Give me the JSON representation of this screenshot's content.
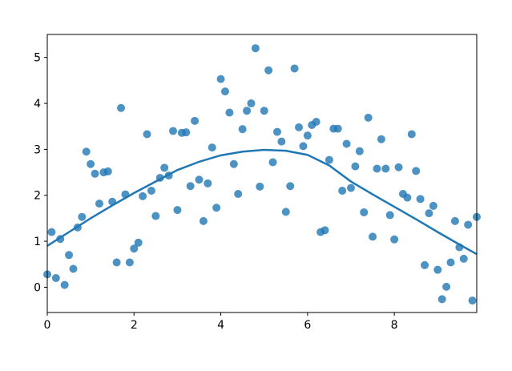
{
  "chart_data": {
    "type": "scatter",
    "xlim": [
      0,
      9.9
    ],
    "ylim": [
      -0.55,
      5.5
    ],
    "xticks": [
      0,
      2,
      4,
      6,
      8
    ],
    "yticks": [
      0,
      1,
      2,
      3,
      4,
      5
    ],
    "series": [
      {
        "type": "scatter",
        "color": "#1f77b4",
        "x": [
          0,
          0.1,
          0.2,
          0.3,
          0.4,
          0.5,
          0.6,
          0.7,
          0.8,
          0.9,
          1.0,
          1.1,
          1.2,
          1.3,
          1.4,
          1.5,
          1.6,
          1.7,
          1.8,
          1.9,
          2.0,
          2.1,
          2.2,
          2.3,
          2.4,
          2.5,
          2.6,
          2.7,
          2.8,
          2.9,
          3.0,
          3.1,
          3.2,
          3.3,
          3.4,
          3.5,
          3.6,
          3.7,
          3.8,
          3.9,
          4.0,
          4.1,
          4.2,
          4.3,
          4.4,
          4.5,
          4.6,
          4.7,
          4.8,
          4.9,
          5.0,
          5.1,
          5.2,
          5.3,
          5.4,
          5.5,
          5.6,
          5.7,
          5.8,
          5.9,
          6.0,
          6.1,
          6.2,
          6.3,
          6.4,
          6.5,
          6.6,
          6.7,
          6.8,
          6.9,
          7.0,
          7.1,
          7.2,
          7.3,
          7.4,
          7.5,
          7.6,
          7.7,
          7.8,
          7.9,
          8.0,
          8.1,
          8.2,
          8.3,
          8.4,
          8.5,
          8.6,
          8.7,
          8.8,
          8.9,
          9.0,
          9.1,
          9.2,
          9.3,
          9.4,
          9.5,
          9.6,
          9.7,
          9.8,
          9.9
        ],
        "values": [
          0.28,
          1.2,
          0.2,
          1.05,
          0.05,
          0.7,
          0.4,
          1.3,
          1.53,
          2.95,
          2.68,
          2.47,
          1.82,
          2.5,
          2.52,
          1.86,
          0.54,
          3.9,
          2.02,
          0.54,
          0.84,
          0.97,
          1.98,
          3.33,
          2.1,
          1.55,
          2.38,
          2.6,
          2.43,
          3.4,
          1.68,
          3.36,
          3.37,
          2.2,
          3.62,
          2.34,
          1.44,
          2.26,
          3.04,
          1.73,
          4.53,
          4.26,
          3.8,
          2.68,
          2.03,
          3.44,
          3.84,
          4.0,
          5.2,
          2.19,
          3.84,
          4.72,
          2.72,
          3.38,
          3.17,
          1.64,
          2.2,
          4.76,
          3.48,
          3.07,
          3.3,
          3.53,
          3.6,
          1.2,
          1.24,
          2.77,
          3.45,
          3.45,
          2.1,
          3.12,
          2.16,
          2.63,
          2.96,
          1.63,
          3.69,
          1.1,
          2.58,
          3.22,
          2.58,
          1.57,
          1.04,
          2.61,
          2.03,
          1.95,
          3.33,
          2.53,
          1.92,
          0.48,
          1.61,
          1.77,
          0.38,
          -0.26,
          0.01,
          0.54,
          1.44,
          0.87,
          0.62,
          1.36,
          -0.29,
          1.53
        ]
      },
      {
        "type": "line",
        "color": "#1f77b4",
        "x": [
          0,
          0.5,
          1,
          1.5,
          2,
          2.5,
          3,
          3.5,
          4,
          4.5,
          5,
          5.5,
          6,
          6.5,
          7,
          7.5,
          8,
          8.5,
          9,
          9.5,
          9.9
        ],
        "values": [
          0.9,
          1.2,
          1.5,
          1.78,
          2.05,
          2.3,
          2.55,
          2.73,
          2.87,
          2.95,
          2.99,
          2.97,
          2.88,
          2.65,
          2.3,
          2.02,
          1.75,
          1.48,
          1.2,
          0.93,
          0.72
        ]
      }
    ]
  }
}
